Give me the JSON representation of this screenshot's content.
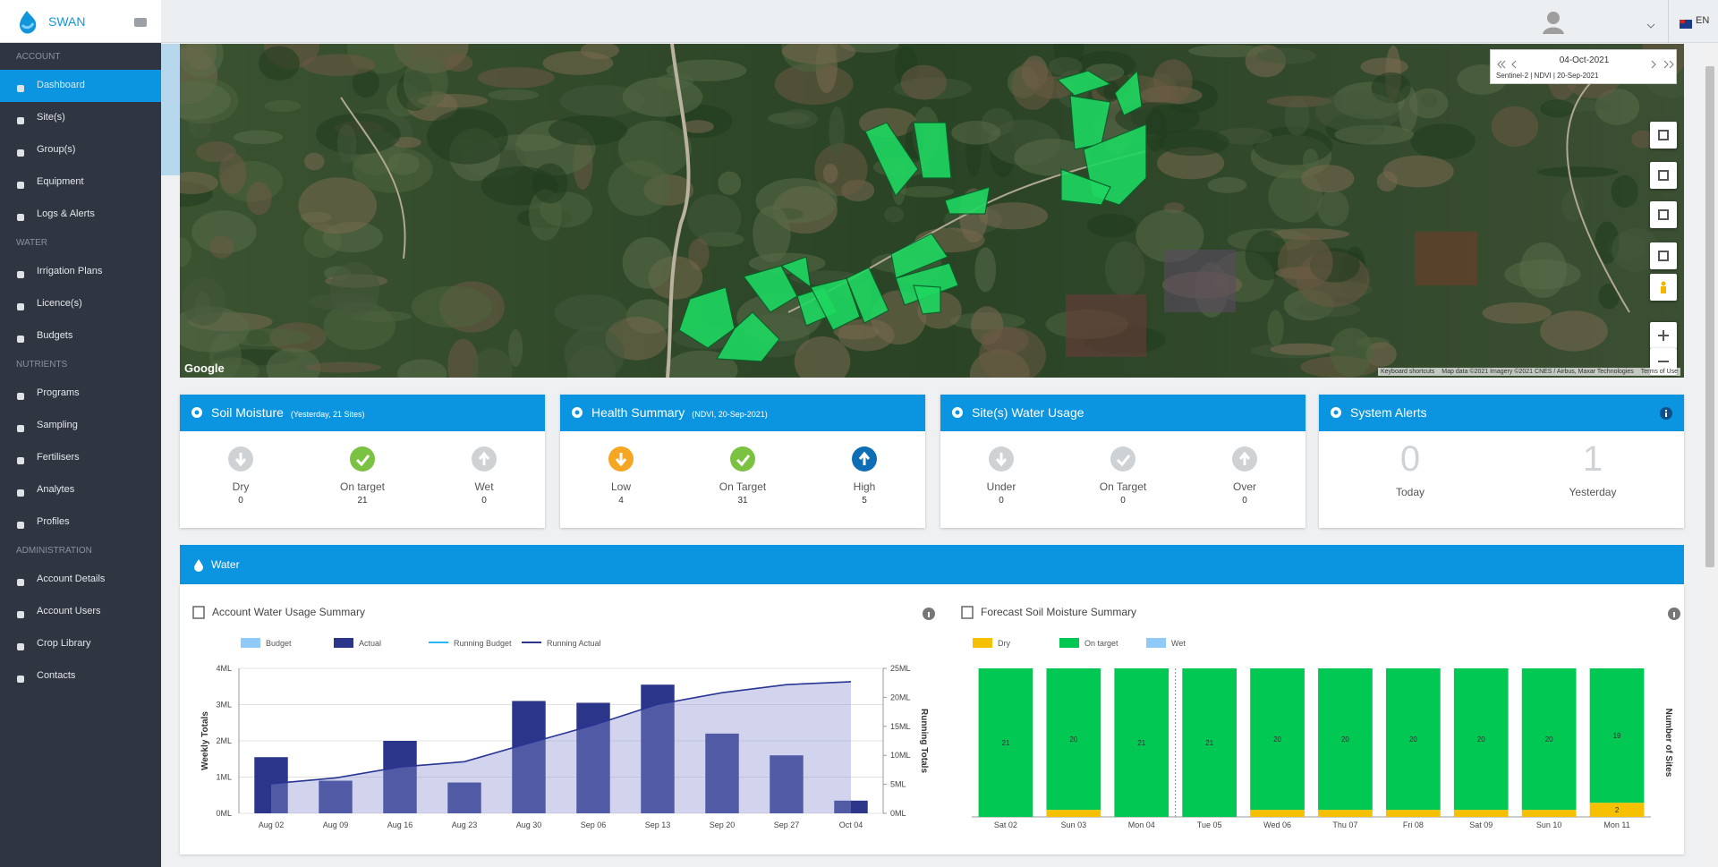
{
  "sidebar": {
    "brand": "SWAN",
    "sections": [
      {
        "title": "ACCOUNT",
        "items": [
          "Dashboard",
          "Site(s)",
          "Group(s)",
          "Equipment",
          "Logs & Alerts"
        ]
      },
      {
        "title": "WATER",
        "items": [
          "Irrigation Plans",
          "Licence(s)",
          "Budgets"
        ]
      },
      {
        "title": "NUTRIENTS",
        "items": [
          "Programs",
          "Sampling",
          "Fertilisers",
          "Analytes",
          "Profiles"
        ]
      },
      {
        "title": "ADMINISTRATION",
        "items": [
          "Account Details",
          "Account Users",
          "Crop Library",
          "Contacts"
        ]
      }
    ]
  },
  "topbar": {
    "language": "EN"
  },
  "map": {
    "date": "04-Oct-2021",
    "layer": "Sentinel-2 | NDVI | 20-Sep-2021",
    "provider": "Google",
    "attribution": [
      "Keyboard shortcuts",
      "Map data ©2021 Imagery ©2021 CNES / Airbus, Maxar Technologies",
      "Terms of Use"
    ]
  },
  "cards": [
    {
      "title": "Soil Moisture",
      "subtitle": "(Yesterday, 21 Sites)",
      "items": [
        {
          "label": "Dry",
          "value": 0
        },
        {
          "label": "On target",
          "value": 21
        },
        {
          "label": "Wet",
          "value": 0
        }
      ]
    },
    {
      "title": "Health Summary",
      "subtitle": "(NDVI, 20-Sep-2021)",
      "items": [
        {
          "label": "Low",
          "value": 4
        },
        {
          "label": "On Target",
          "value": 31
        },
        {
          "label": "High",
          "value": 5
        }
      ]
    },
    {
      "title": "Site(s) Water Usage",
      "items": [
        {
          "label": "Under",
          "value": 0
        },
        {
          "label": "On Target",
          "value": 0
        },
        {
          "label": "Over",
          "value": 0
        }
      ]
    },
    {
      "title": "System Alerts",
      "items": [
        {
          "label": "Today",
          "value": 0
        },
        {
          "label": "Yesterday",
          "value": 1
        }
      ]
    }
  ],
  "water_section": {
    "title": "Water"
  },
  "chart_data": [
    {
      "type": "bar_line",
      "title": "Account Water Usage Summary",
      "categories": [
        "Aug 02",
        "Aug 09",
        "Aug 16",
        "Aug 23",
        "Aug 30",
        "Sep 06",
        "Sep 13",
        "Sep 20",
        "Sep 27",
        "Oct 04"
      ],
      "series": [
        {
          "name": "Budget",
          "type": "bar",
          "color": "#90caf9",
          "values": [
            null,
            null,
            null,
            null,
            null,
            null,
            null,
            null,
            null,
            null
          ]
        },
        {
          "name": "Actual",
          "type": "bar",
          "color": "#2b3589",
          "values": [
            1.55,
            0.9,
            2.0,
            0.85,
            3.1,
            3.05,
            3.55,
            2.2,
            1.6,
            0.35
          ]
        },
        {
          "name": "Running Budget",
          "type": "line",
          "axis": "y2",
          "color": "#29b6f6",
          "values": [
            null,
            null,
            null,
            null,
            null,
            null,
            null,
            null,
            null,
            null
          ]
        },
        {
          "name": "Running Actual",
          "type": "line",
          "axis": "y2",
          "color": "#283593",
          "values": [
            5.1,
            6.1,
            8.0,
            8.9,
            12.1,
            15.2,
            18.8,
            20.8,
            22.2,
            22.7
          ]
        }
      ],
      "ylabel": "Weekly Totals",
      "y2label": "Running Totals",
      "ylim": [
        0,
        4
      ],
      "yticks": [
        {
          "value": 0,
          "label": "0ML"
        },
        {
          "value": 1,
          "label": "1ML"
        },
        {
          "value": 2,
          "label": "2ML"
        },
        {
          "value": 3,
          "label": "3ML"
        },
        {
          "value": 4,
          "label": "4ML"
        }
      ],
      "y2lim": [
        0,
        25
      ],
      "y2ticks": [
        {
          "value": 0,
          "label": "0ML"
        },
        {
          "value": 5,
          "label": "5ML"
        },
        {
          "value": 10,
          "label": "10ML"
        },
        {
          "value": 15,
          "label": "15ML"
        },
        {
          "value": 20,
          "label": "20ML"
        },
        {
          "value": 25,
          "label": "25ML"
        }
      ],
      "grid": true
    },
    {
      "type": "stacked_bar",
      "title": "Forecast Soil Moisture Summary",
      "categories": [
        "Sat 02",
        "Sun 03",
        "Mon 04",
        "Tue 05",
        "Wed 06",
        "Thu 07",
        "Fri 08",
        "Sat 09",
        "Sun 10",
        "Mon 11"
      ],
      "series": [
        {
          "name": "Dry",
          "color": "#f5c000",
          "values": [
            0,
            1,
            0,
            0,
            1,
            1,
            1,
            1,
            1,
            2
          ],
          "value_labels": [
            null,
            null,
            null,
            null,
            null,
            null,
            null,
            null,
            null,
            "2"
          ]
        },
        {
          "name": "On target",
          "color": "#00c853",
          "values": [
            21,
            20,
            21,
            21,
            20,
            20,
            20,
            20,
            20,
            19
          ],
          "show_labels": true
        },
        {
          "name": "Wet",
          "color": "#90caf9",
          "values": [
            0,
            0,
            0,
            0,
            0,
            0,
            0,
            0,
            0,
            0
          ]
        }
      ],
      "y2label": "Number of Sites",
      "ylim": [
        0,
        21
      ]
    }
  ]
}
